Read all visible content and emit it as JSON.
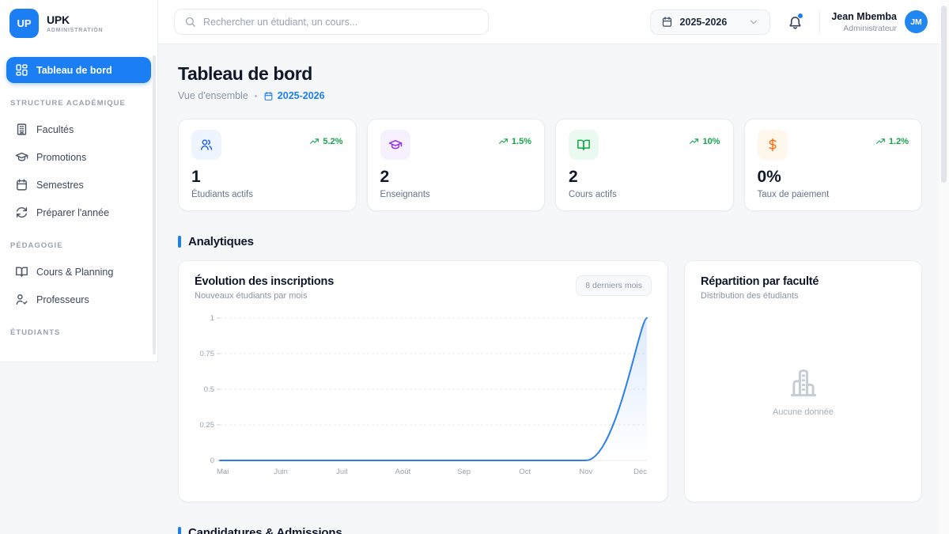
{
  "app": {
    "logo_text": "UP",
    "name": "UPK",
    "subtitle": "ADMINISTRATION"
  },
  "colors": {
    "primary": "#1b7ef2",
    "success": "#16a34a",
    "chart_line": "#2b7fe8"
  },
  "topbar": {
    "search_placeholder": "Rechercher un étudiant, un cours...",
    "year": "2025-2026",
    "user": {
      "name": "Jean Mbemba",
      "role": "Administrateur",
      "initials": "JM"
    }
  },
  "sidebar": {
    "main": [
      {
        "id": "tableau-de-bord",
        "label": "Tableau de bord",
        "icon": "dashboard-icon",
        "active": true
      }
    ],
    "sections": [
      {
        "label": "STRUCTURE ACADÉMIQUE",
        "items": [
          {
            "id": "facultes",
            "label": "Facultés",
            "icon": "building-icon"
          },
          {
            "id": "promotions",
            "label": "Promotions",
            "icon": "graduation-cap-icon"
          },
          {
            "id": "semestres",
            "label": "Semestres",
            "icon": "calendar-icon"
          },
          {
            "id": "preparer-annee",
            "label": "Préparer l'année",
            "icon": "refresh-icon"
          }
        ]
      },
      {
        "label": "PÉDAGOGIE",
        "items": [
          {
            "id": "cours-planning",
            "label": "Cours & Planning",
            "icon": "book-open-icon"
          },
          {
            "id": "professeurs",
            "label": "Professeurs",
            "icon": "user-check-icon"
          }
        ]
      },
      {
        "label": "ÉTUDIANTS",
        "items": []
      }
    ]
  },
  "page": {
    "title": "Tableau de bord",
    "breadcrumb": "Vue d'ensemble",
    "breadcrumb_year": "2025-2026"
  },
  "stats": [
    {
      "id": "etudiants-actifs",
      "icon": "users-icon",
      "color": "#2563eb",
      "bg": "#eef5ff",
      "trend": "5.2%",
      "value": "1",
      "label": "Étudiants actifs"
    },
    {
      "id": "enseignants",
      "icon": "graduation-cap-icon",
      "color": "#9333ea",
      "bg": "#f6f1fd",
      "trend": "1.5%",
      "value": "2",
      "label": "Enseignants"
    },
    {
      "id": "cours-actifs",
      "icon": "book-open-icon",
      "color": "#16a34a",
      "bg": "#eafaf1",
      "trend": "10%",
      "value": "2",
      "label": "Cours actifs"
    },
    {
      "id": "taux-paiement",
      "icon": "dollar-icon",
      "color": "#f97316",
      "bg": "#fff6ec",
      "trend": "1.2%",
      "value": "0%",
      "label": "Taux de paiement"
    }
  ],
  "sections": {
    "analytics": "Analytiques",
    "admissions": "Candidatures & Admissions"
  },
  "analytics": {
    "chart_card": {
      "title": "Évolution des inscriptions",
      "subtitle": "Nouveaux étudiants par mois",
      "badge": "8 derniers mois"
    },
    "faculty_card": {
      "title": "Répartition par faculté",
      "subtitle": "Distribution des étudiants",
      "empty_text": "Aucune donnée"
    }
  },
  "chart_data": {
    "type": "line",
    "title": "Évolution des inscriptions",
    "x": [
      "Mai",
      "Juin",
      "Juil",
      "Août",
      "Sep",
      "Oct",
      "Nov",
      "Déc"
    ],
    "series": [
      {
        "name": "Nouveaux étudiants",
        "values": [
          0,
          0,
          0,
          0,
          0,
          0,
          0,
          1
        ]
      }
    ],
    "ylim": [
      0,
      1
    ],
    "yticks": [
      0,
      0.25,
      0.5,
      0.75,
      1
    ],
    "grid": true,
    "legend": false,
    "line_color": "#2b7fe8"
  }
}
